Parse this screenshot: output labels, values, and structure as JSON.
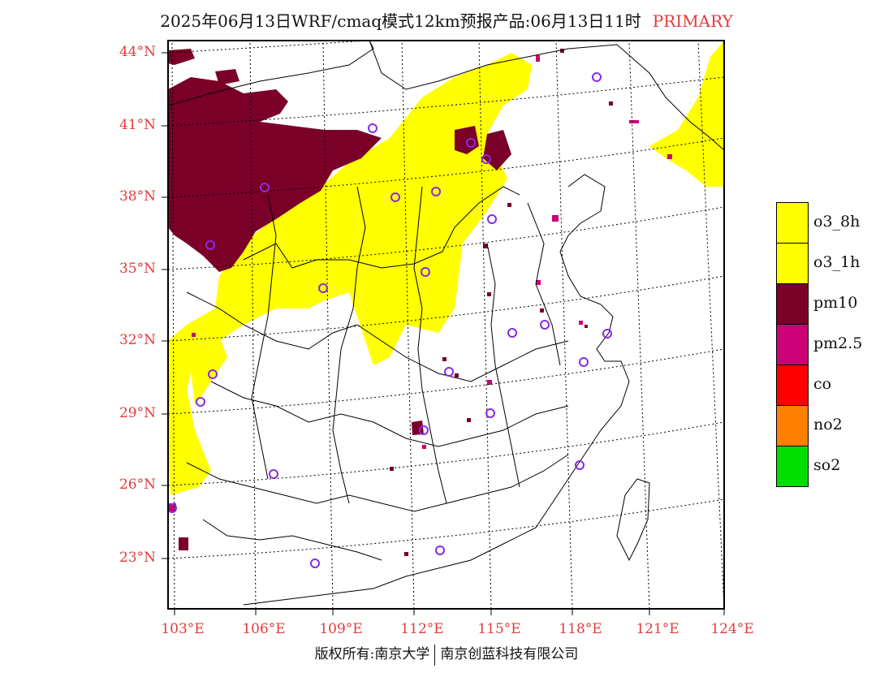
{
  "title": "2025年06月13日WRF/cmaq模式12km预报产品:06月13日11时",
  "title_tag": "PRIMARY",
  "lat_labels": [
    "44°N",
    "41°N",
    "38°N",
    "35°N",
    "32°N",
    "29°N",
    "26°N",
    "23°N"
  ],
  "lon_labels": [
    "103°E",
    "106°E",
    "109°E",
    "112°E",
    "115°E",
    "118°E",
    "121°E",
    "124°E"
  ],
  "legend": [
    {
      "label": "o3_8h",
      "color": "#ffff00"
    },
    {
      "label": "o3_1h",
      "color": "#ffff00"
    },
    {
      "label": "pm10",
      "color": "#7a0028"
    },
    {
      "label": "pm2.5",
      "color": "#cc0077"
    },
    {
      "label": "co",
      "color": "#ff0000"
    },
    {
      "label": "no2",
      "color": "#ff7f00"
    },
    {
      "label": "so2",
      "color": "#00dd00"
    }
  ],
  "footer_left": "版权所有:南京大学",
  "footer_right": "南京创蓝科技有限公司",
  "colors": {
    "station_marker": "#8a2be2",
    "axis_label": "#e23b3b"
  }
}
